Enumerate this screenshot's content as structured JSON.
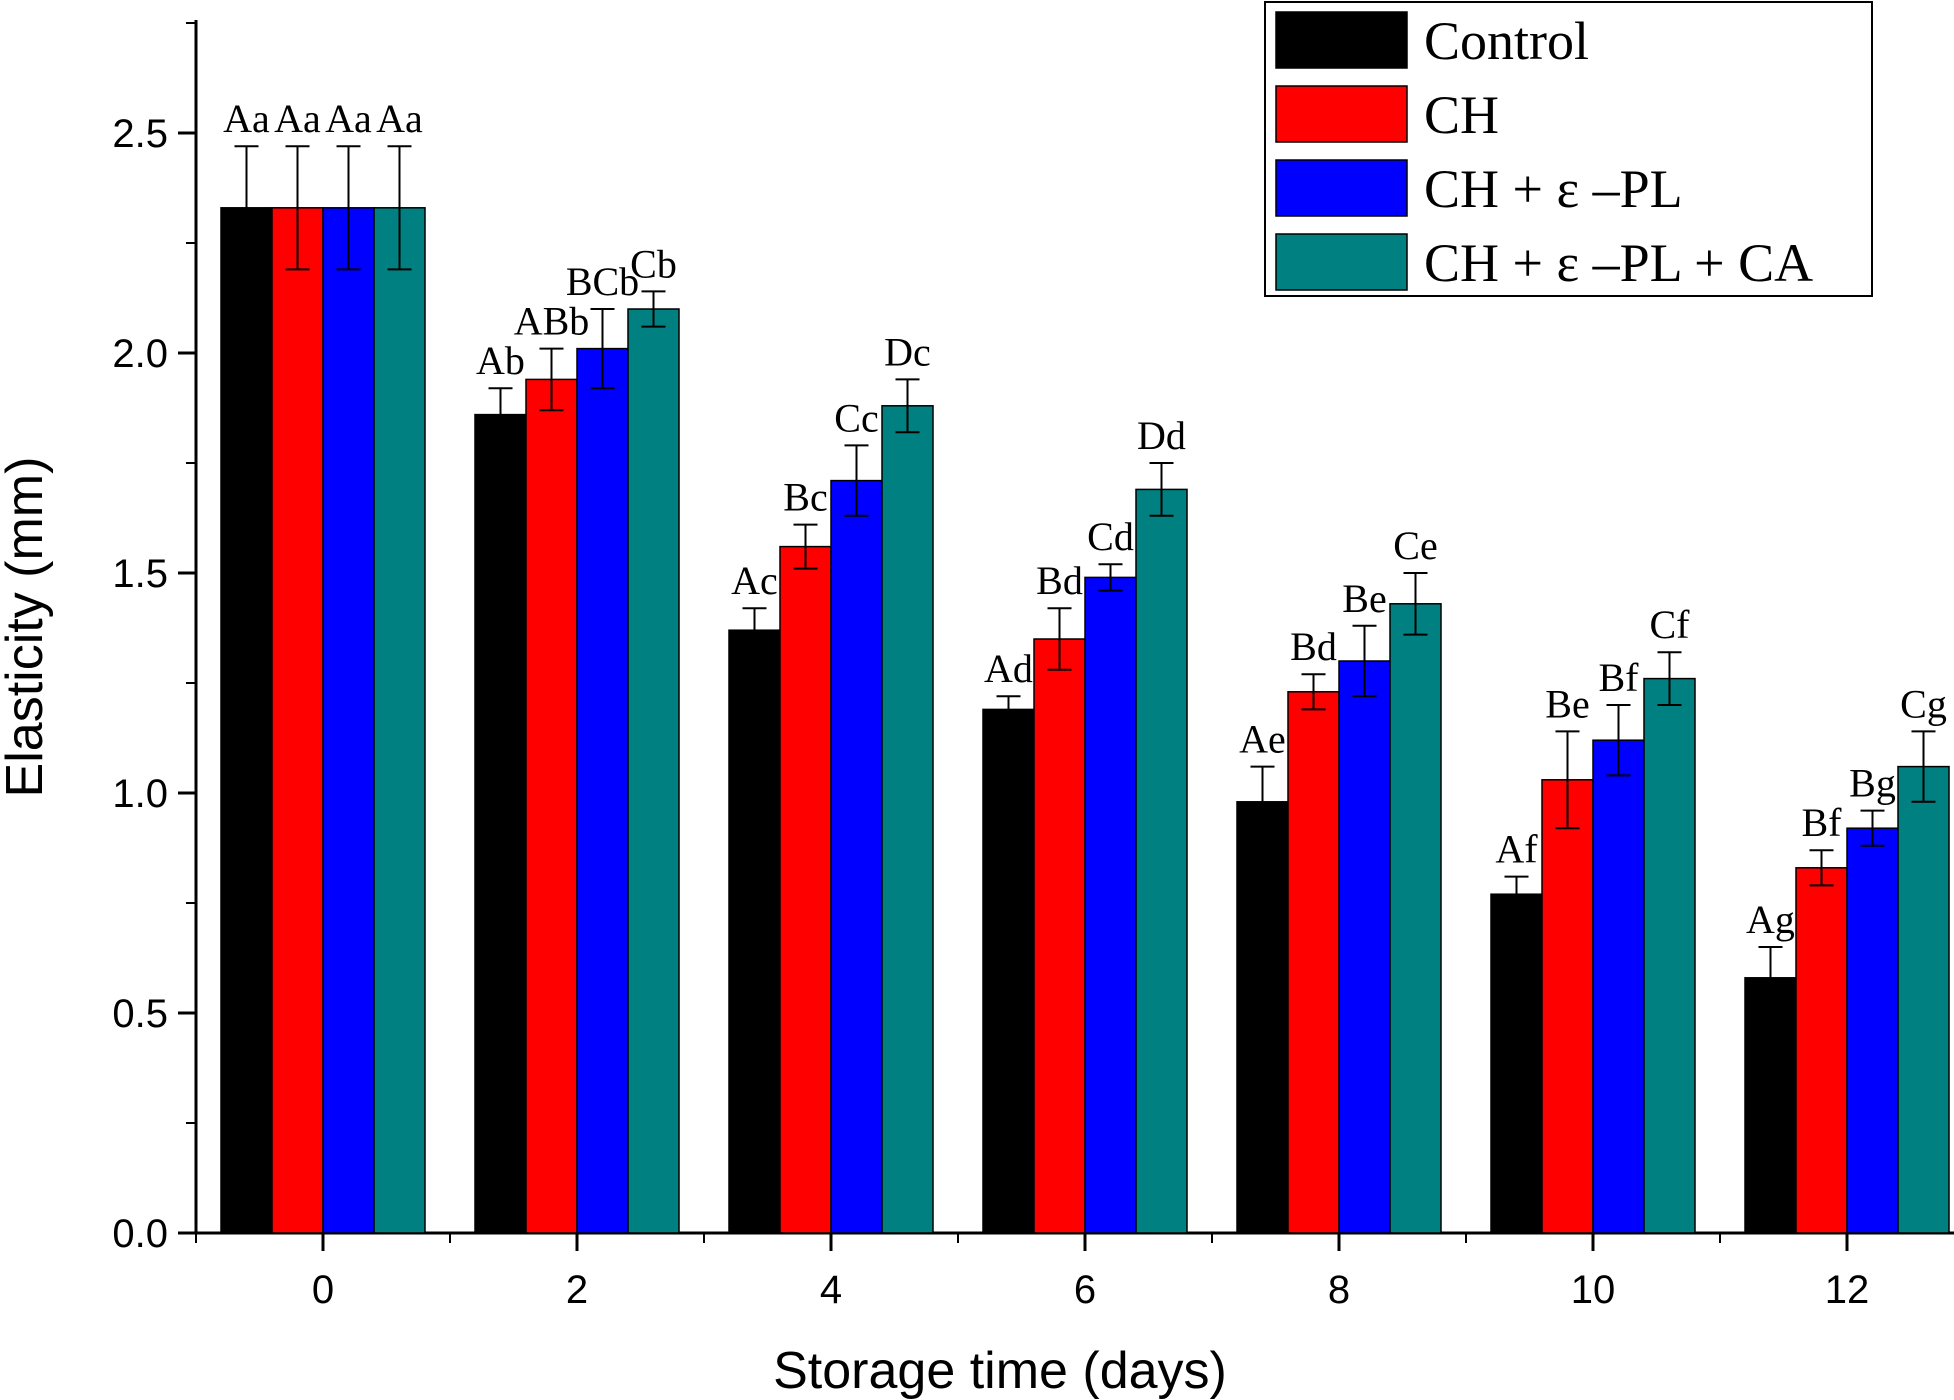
{
  "chart_data": {
    "type": "bar",
    "xlabel": "Storage time (days)",
    "ylabel": "Elasticity (mm)",
    "categories": [
      "0",
      "2",
      "4",
      "6",
      "8",
      "10",
      "12"
    ],
    "ylim": [
      0,
      2.75
    ],
    "yticks": [
      "0.0",
      "0.5",
      "1.0",
      "1.5",
      "2.0",
      "2.5"
    ],
    "grid": false,
    "legend_position": "top-right",
    "series": [
      {
        "name": "Control",
        "color": "#000000",
        "values": [
          2.33,
          1.86,
          1.37,
          1.19,
          0.98,
          0.77,
          0.58
        ],
        "errors": [
          0.14,
          0.06,
          0.05,
          0.03,
          0.08,
          0.04,
          0.07
        ],
        "labels": [
          "Aa",
          "Ab",
          "Ac",
          "Ad",
          "Ae",
          "Af",
          "Ag"
        ]
      },
      {
        "name": "CH",
        "color": "#ff0000",
        "values": [
          2.33,
          1.94,
          1.56,
          1.35,
          1.23,
          1.03,
          0.83
        ],
        "errors": [
          0.14,
          0.07,
          0.05,
          0.07,
          0.04,
          0.11,
          0.04
        ],
        "labels": [
          "Aa",
          "ABb",
          "Bc",
          "Bd",
          "Bd",
          "Be",
          "Bf"
        ]
      },
      {
        "name": "CH + ε –PL",
        "color": "#0000ff",
        "values": [
          2.33,
          2.01,
          1.71,
          1.49,
          1.3,
          1.12,
          0.92
        ],
        "errors": [
          0.14,
          0.09,
          0.08,
          0.03,
          0.08,
          0.08,
          0.04
        ],
        "labels": [
          "Aa",
          "BCb",
          "Cc",
          "Cd",
          "Be",
          "Bf",
          "Bg"
        ]
      },
      {
        "name": "CH + ε –PL + CA",
        "color": "#008080",
        "values": [
          2.33,
          2.1,
          1.88,
          1.69,
          1.43,
          1.26,
          1.06
        ],
        "errors": [
          0.14,
          0.04,
          0.06,
          0.06,
          0.07,
          0.06,
          0.08
        ],
        "labels": [
          "Aa",
          "Cb",
          "Dc",
          "Dd",
          "Ce",
          "Cf",
          "Cg"
        ]
      }
    ]
  }
}
